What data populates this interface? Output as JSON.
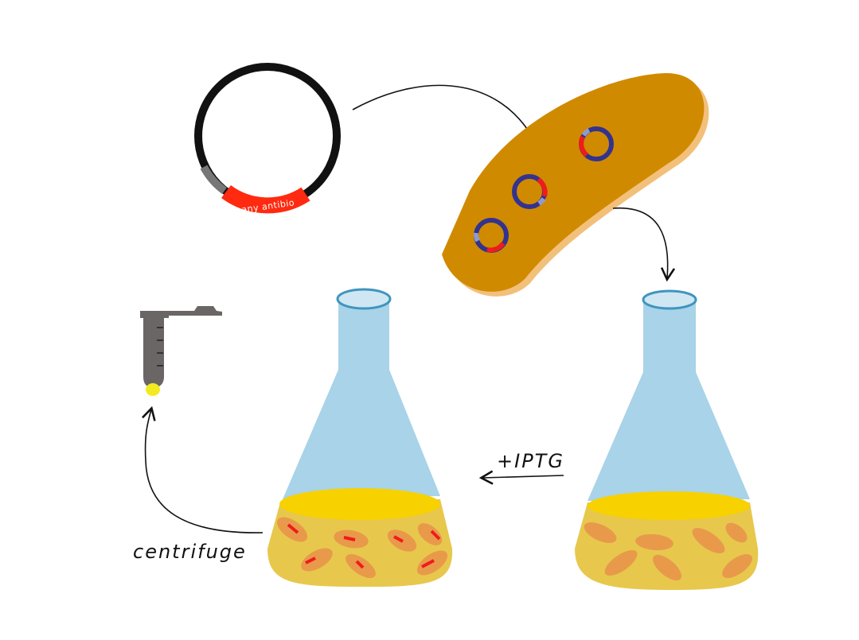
{
  "plasmid": {
    "resistance_label": "any antibio"
  },
  "labels": {
    "iptg": "+IPTG",
    "centrifuge": "centrifuge"
  },
  "colors": {
    "plasmid_backbone": "#111111",
    "plasmid_resistance": "#ff2a10",
    "plasmid_promoter": "#777777",
    "bacterium": "#d08a00",
    "bacterium_shadow": "#f2c07a",
    "small_plasmid": "#33338f",
    "flask_glass": "#a8d3e8",
    "flask_rim": "#3f95bf",
    "culture": "#e7c84d",
    "culture_surface": "#f7d100",
    "cell": "#e89a4a",
    "tube": "#6b6666",
    "pellet": "#f4ea20"
  }
}
